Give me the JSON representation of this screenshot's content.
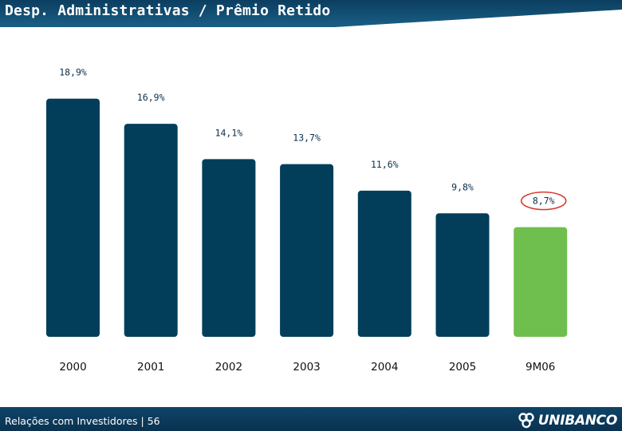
{
  "title": "Desp. Administrativas / Prêmio Retido",
  "footer": {
    "text": "Relações com Investidores | 56"
  },
  "logo": {
    "text": "UNIBANCO"
  },
  "colors": {
    "header": "#0b3e60",
    "bar": "#023e5a",
    "highlight": "#6ebf4d",
    "highlight_ring": "#d93a2b"
  },
  "chart_data": {
    "type": "bar",
    "categories": [
      "2000",
      "2001",
      "2002",
      "2003",
      "2004",
      "2005",
      "9M06"
    ],
    "values": [
      18.9,
      16.9,
      14.1,
      13.7,
      11.6,
      9.8,
      8.7
    ],
    "value_labels": [
      "18,9%",
      "16,9%",
      "14,1%",
      "13,7%",
      "11,6%",
      "9,8%",
      "8,7%"
    ],
    "highlight_index": 6,
    "title": "",
    "xlabel": "",
    "ylabel": "",
    "ylim": [
      0,
      19
    ]
  }
}
